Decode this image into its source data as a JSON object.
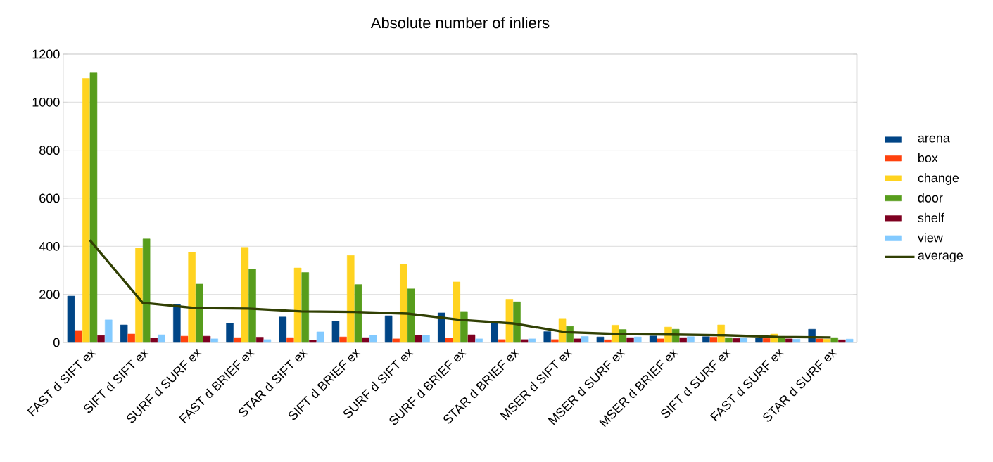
{
  "chart_data": {
    "type": "bar",
    "title": "Absolute number of inliers",
    "categories": [
      "FAST d SIFT ex",
      "SIFT d SIFT ex",
      "SURF d SURF ex",
      "FAST d BRIEF ex",
      "STAR d SIFT ex",
      "SIFT d BRIEF ex",
      "SURF d SIFT ex",
      "SURF d BRIEF ex",
      "STAR d BRIEF ex",
      "MSER d SIFT ex",
      "MSER d SURF ex",
      "MSER d BRIEF ex",
      "SIFT d SURF ex",
      "FAST d SURF ex",
      "STAR d SURF ex"
    ],
    "series": [
      {
        "name": "arena",
        "color": "#004586",
        "values": [
          193,
          73,
          158,
          79,
          106,
          89,
          111,
          123,
          79,
          45,
          23,
          27,
          24,
          18,
          55
        ]
      },
      {
        "name": "box",
        "color": "#ff420e",
        "values": [
          50,
          35,
          26,
          20,
          20,
          23,
          15,
          18,
          12,
          12,
          11,
          15,
          22,
          17,
          15
        ]
      },
      {
        "name": "change",
        "color": "#ffd320",
        "values": [
          1099,
          393,
          375,
          396,
          310,
          362,
          325,
          252,
          180,
          100,
          72,
          64,
          73,
          35,
          14
        ]
      },
      {
        "name": "door",
        "color": "#579d1c",
        "values": [
          1122,
          431,
          243,
          305,
          291,
          241,
          223,
          129,
          169,
          67,
          54,
          55,
          20,
          25,
          20
        ]
      },
      {
        "name": "shelf",
        "color": "#7e0021",
        "values": [
          29,
          18,
          26,
          22,
          9,
          20,
          30,
          32,
          12,
          15,
          20,
          20,
          17,
          15,
          11
        ]
      },
      {
        "name": "view",
        "color": "#83caff",
        "values": [
          94,
          32,
          15,
          12,
          44,
          30,
          30,
          15,
          15,
          25,
          23,
          24,
          20,
          14,
          14
        ]
      },
      {
        "name": "average",
        "type": "line",
        "color": "#314004",
        "values": [
          426,
          165,
          143,
          141,
          129,
          127,
          120,
          94,
          79,
          43,
          35,
          33,
          30,
          23,
          21
        ]
      }
    ],
    "ylim": [
      0,
      1200
    ],
    "yticks": [
      0,
      200,
      400,
      600,
      800,
      1000,
      1200
    ],
    "grid": "y",
    "legend": "right"
  }
}
